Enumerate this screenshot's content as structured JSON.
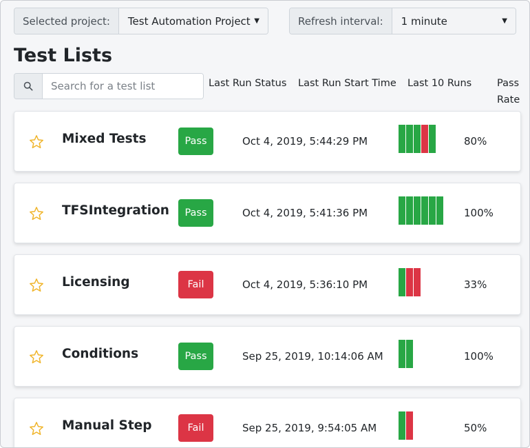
{
  "colors": {
    "pass": "#28a745",
    "fail": "#dc3545",
    "star": "#f0b429"
  },
  "filters": {
    "project_label": "Selected project:",
    "project_value": "Test Automation Project",
    "refresh_label": "Refresh interval:",
    "refresh_value": "1 minute"
  },
  "page_title": "Test Lists",
  "search": {
    "placeholder": "Search for a test list"
  },
  "columns": {
    "status": "Last Run Status",
    "start_time": "Last Run Start Time",
    "runs": "Last 10 Runs",
    "pass_rate": "Pass Rate"
  },
  "test_lists": [
    {
      "name": "Mixed Tests",
      "status": "Pass",
      "start_time": "Oct 4, 2019, 5:44:29 PM",
      "runs": [
        "pass",
        "pass",
        "pass",
        "fail",
        "pass"
      ],
      "pass_rate": "80%"
    },
    {
      "name": "TFSIntegration",
      "status": "Pass",
      "start_time": "Oct 4, 2019, 5:41:36 PM",
      "runs": [
        "pass",
        "pass",
        "pass",
        "pass",
        "pass",
        "pass"
      ],
      "pass_rate": "100%"
    },
    {
      "name": "Licensing",
      "status": "Fail",
      "start_time": "Oct 4, 2019, 5:36:10 PM",
      "runs": [
        "pass",
        "fail",
        "fail"
      ],
      "pass_rate": "33%"
    },
    {
      "name": "Conditions",
      "status": "Pass",
      "start_time": "Sep 25, 2019, 10:14:06 AM",
      "runs": [
        "pass",
        "pass"
      ],
      "pass_rate": "100%"
    },
    {
      "name": "Manual Step",
      "status": "Fail",
      "start_time": "Sep 25, 2019, 9:54:05 AM",
      "runs": [
        "pass",
        "fail"
      ],
      "pass_rate": "50%"
    }
  ]
}
